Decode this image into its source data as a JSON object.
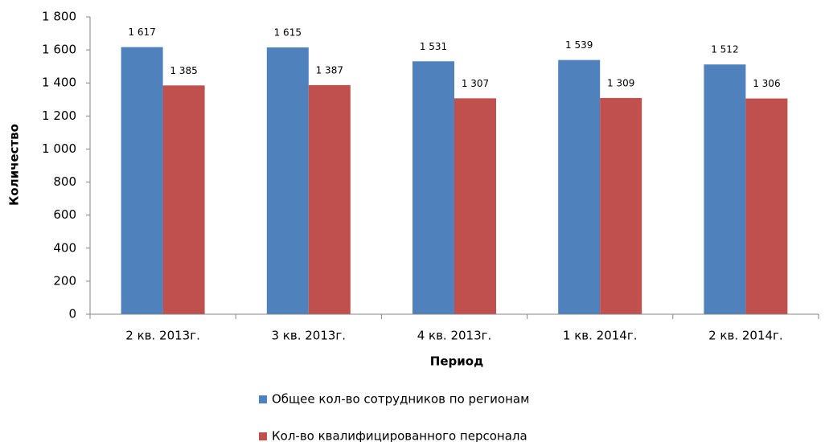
{
  "chart_data": {
    "type": "bar",
    "categories": [
      "2 кв. 2013г.",
      "3 кв. 2013г.",
      "4 кв. 2013г.",
      "1 кв. 2014г.",
      "2 кв. 2014г."
    ],
    "series": [
      {
        "name": "Общее кол-во сотрудников по регионам",
        "color": "#4f81bd",
        "values": [
          1617,
          1615,
          1531,
          1539,
          1512
        ],
        "value_labels": [
          "1 617",
          "1 615",
          "1 531",
          "1 539",
          "1 512"
        ]
      },
      {
        "name": "Кол-во квалифицированного персонала",
        "color": "#c0504d",
        "values": [
          1385,
          1387,
          1307,
          1309,
          1306
        ],
        "value_labels": [
          "1 385",
          "1 387",
          "1 307",
          "1 309",
          "1 306"
        ]
      }
    ],
    "x_label": "Период",
    "y_label": "Количество",
    "ylim": [
      0,
      1800
    ],
    "yticks": [
      0,
      200,
      400,
      600,
      800,
      {
        "value": 1000,
        "label": "1 000"
      },
      {
        "value": 1200,
        "label": "1 200"
      },
      {
        "value": 1400,
        "label": "1 400"
      },
      {
        "value": 1600,
        "label": "1 600"
      },
      {
        "value": 1800,
        "label": "1 800"
      }
    ],
    "grid": false,
    "legend": "bottom"
  }
}
